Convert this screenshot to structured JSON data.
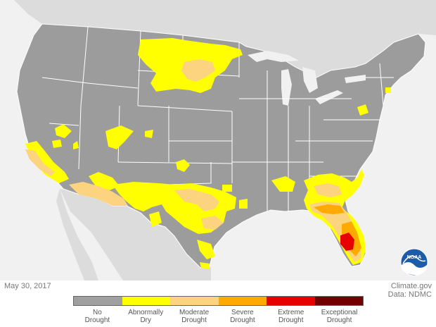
{
  "date": "May 30, 2017",
  "credit": {
    "line1": "Climate.gov",
    "line2": "Data: NDMC"
  },
  "logo": {
    "text": "NOAA"
  },
  "colors": {
    "background": "#f1f1f1",
    "land_other": "#dcdcdc",
    "us_base": "#9c9c9c",
    "boundary": "#ffffff"
  },
  "legend": [
    {
      "label1": "No",
      "label2": "Drought",
      "color": "#a0a0a0"
    },
    {
      "label1": "Abnormally",
      "label2": "Dry",
      "color": "#ffff00"
    },
    {
      "label1": "Moderate",
      "label2": "Drought",
      "color": "#fcd37f"
    },
    {
      "label1": "Severe",
      "label2": "Drought",
      "color": "#ffaa00"
    },
    {
      "label1": "Extreme",
      "label2": "Drought",
      "color": "#e60000"
    },
    {
      "label1": "Exceptional",
      "label2": "Drought",
      "color": "#730000"
    }
  ]
}
